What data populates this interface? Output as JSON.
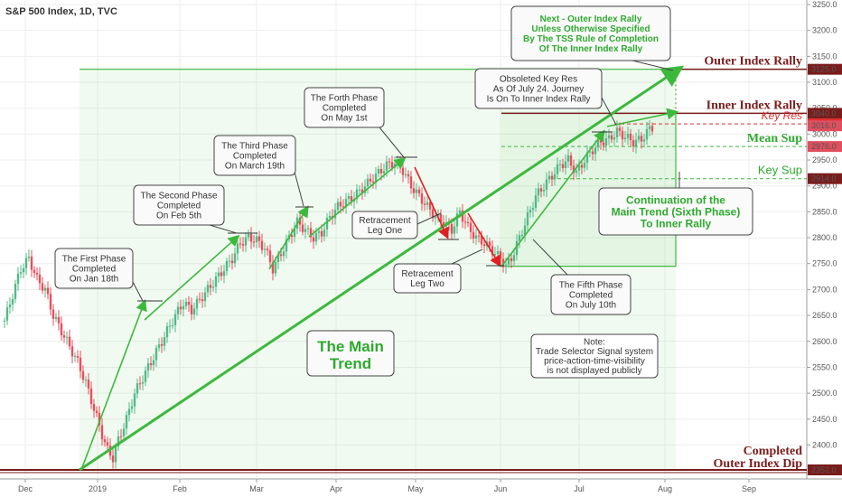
{
  "header": {
    "symbol": "S&P 500 Index, 1D, TVC"
  },
  "chart_data": {
    "type": "candlestick",
    "x_ticks": [
      "Dec",
      "2019",
      "Feb",
      "Mar",
      "Apr",
      "May",
      "Jun",
      "Jul",
      "Aug",
      "Sep"
    ],
    "y_ticks": [
      3250,
      3200,
      3150,
      3100,
      3050,
      3000,
      2950,
      2900,
      2850,
      2800,
      2750,
      2700,
      2650,
      2600,
      2550,
      2500,
      2450,
      2400
    ],
    "ylim": [
      2352,
      3250
    ],
    "price_path": [
      [
        0,
        2640
      ],
      [
        3,
        2690
      ],
      [
        6,
        2740
      ],
      [
        9,
        2760
      ],
      [
        12,
        2720
      ],
      [
        15,
        2700
      ],
      [
        18,
        2650
      ],
      [
        21,
        2620
      ],
      [
        24,
        2590
      ],
      [
        27,
        2560
      ],
      [
        30,
        2520
      ],
      [
        33,
        2470
      ],
      [
        36,
        2420
      ],
      [
        38,
        2390
      ],
      [
        40,
        2375
      ],
      [
        42,
        2410
      ],
      [
        45,
        2450
      ],
      [
        48,
        2500
      ],
      [
        51,
        2530
      ],
      [
        54,
        2560
      ],
      [
        57,
        2590
      ],
      [
        60,
        2620
      ],
      [
        63,
        2650
      ],
      [
        66,
        2675
      ],
      [
        69,
        2660
      ],
      [
        72,
        2680
      ],
      [
        75,
        2700
      ],
      [
        78,
        2720
      ],
      [
        81,
        2740
      ],
      [
        84,
        2760
      ],
      [
        87,
        2790
      ],
      [
        90,
        2800
      ],
      [
        93,
        2795
      ],
      [
        96,
        2780
      ],
      [
        99,
        2740
      ],
      [
        102,
        2770
      ],
      [
        105,
        2800
      ],
      [
        108,
        2830
      ],
      [
        111,
        2815
      ],
      [
        114,
        2800
      ],
      [
        117,
        2810
      ],
      [
        120,
        2840
      ],
      [
        123,
        2860
      ],
      [
        126,
        2870
      ],
      [
        129,
        2880
      ],
      [
        132,
        2895
      ],
      [
        135,
        2910
      ],
      [
        138,
        2925
      ],
      [
        141,
        2940
      ],
      [
        144,
        2945
      ],
      [
        147,
        2930
      ],
      [
        150,
        2900
      ],
      [
        153,
        2880
      ],
      [
        156,
        2860
      ],
      [
        159,
        2840
      ],
      [
        162,
        2830
      ],
      [
        165,
        2815
      ],
      [
        168,
        2850
      ],
      [
        171,
        2820
      ],
      [
        174,
        2800
      ],
      [
        177,
        2790
      ],
      [
        180,
        2775
      ],
      [
        183,
        2760
      ],
      [
        185,
        2745
      ],
      [
        187,
        2760
      ],
      [
        190,
        2800
      ],
      [
        193,
        2840
      ],
      [
        196,
        2880
      ],
      [
        199,
        2900
      ],
      [
        202,
        2920
      ],
      [
        205,
        2940
      ],
      [
        208,
        2950
      ],
      [
        211,
        2925
      ],
      [
        214,
        2950
      ],
      [
        217,
        2970
      ],
      [
        220,
        2985
      ],
      [
        223,
        2990
      ],
      [
        226,
        3005
      ],
      [
        229,
        2995
      ],
      [
        232,
        2985
      ],
      [
        235,
        2990
      ],
      [
        238,
        3010
      ],
      [
        240,
        3016
      ]
    ],
    "levels": [
      {
        "name": "Outer Index Rally",
        "value": 3125.0,
        "axis_label": "3125.0"
      },
      {
        "name": "Inner Index Rally",
        "value": 3040.0,
        "axis_label": "3040.0"
      },
      {
        "name": "Key Res",
        "value": 3019.6,
        "axis_label": "3019.6"
      },
      {
        "name": "Mean Sup",
        "value": 2976.0,
        "axis_label": "2976.0"
      },
      {
        "name": "Key Sup",
        "value": 2914.0,
        "axis_label": "2914.0"
      },
      {
        "name": "Completed Outer Index Dip",
        "value": 2352.0,
        "axis_label": "2352.0"
      }
    ],
    "last_price": {
      "value": 3016.0,
      "axis_label": "3016.0"
    },
    "level_names": {
      "outer_rally": "Outer Index Rally",
      "inner_rally": "Inner Index Rally",
      "key_res": "Key Res",
      "mean_sup": "Mean Sup",
      "key_sup": "Key Sup",
      "dip_line1": "Completed",
      "dip_line2": "Outer Index Dip"
    },
    "annotations": {
      "phase1": [
        "The First Phase",
        "Completed",
        "On Jan 18th"
      ],
      "phase2": [
        "The Second Phase",
        "Completed",
        "On Feb 5th"
      ],
      "phase3": [
        "The Third Phase",
        "Completed",
        "On March 19th"
      ],
      "phase4": [
        "The Forth Phase",
        "Completed",
        "On May 1st"
      ],
      "phase5": [
        "The Fifth Phase",
        "Completed",
        "On July 10th"
      ],
      "retrace1": [
        "Retracement",
        "Leg One"
      ],
      "retrace2": [
        "Retracement",
        "Leg Two"
      ],
      "obsoleted": [
        "Obsoleted Key Res",
        "As Of July 24. Journey",
        "Is On To Inner Index Rally"
      ],
      "next": [
        "Next - Outer Index Rally",
        "Unless Otherwise Specified",
        "By The TSS Rule of Completion",
        "Of The Inner Index Rally"
      ],
      "continuation": [
        "Continuation of the",
        "Main Trend (Sixth Phase)",
        "To Inner Rally"
      ],
      "main_trend": [
        "The Main",
        "Trend"
      ],
      "note": [
        "Note:",
        "Trade Selector Signal system",
        "price-action-time-visibility",
        "is not displayed publicly"
      ]
    },
    "colors": {
      "up": "#53b987",
      "down": "#eb4d5c",
      "arrow_green": "#3cb93c",
      "arrow_red": "#e02020",
      "maroon": "#7a1c1c",
      "green_text": "#2eaa2e",
      "red_text": "#e03030"
    }
  }
}
